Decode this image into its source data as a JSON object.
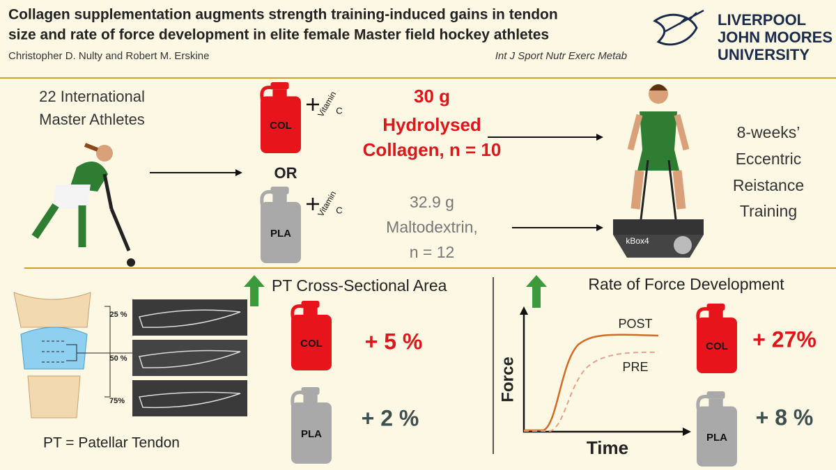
{
  "header": {
    "title_lines": [
      "Collagen supplementation augments strength training-induced gains in tendon",
      "size and rate of force development in elite female Master field hockey athletes"
    ],
    "authors": "Christopher D. Nulty and Robert M. Erskine",
    "journal": "Int J Sport Nutr Exerc Metab",
    "logo_lines": [
      "LIVERPOOL",
      "JOHN MOORES",
      "UNIVERSITY"
    ]
  },
  "design": {
    "participants": [
      "22 International",
      "Master Athletes"
    ],
    "col_label": "COL",
    "pla_label": "PLA",
    "vitamin": "Vitamin",
    "vitamin_letter": "C",
    "or": "OR",
    "col_group": [
      "30 g",
      "Hydrolysed",
      "Collagen, n = 10"
    ],
    "pla_group": [
      "32.9 g",
      "Maltodextrin,",
      "n = 12"
    ],
    "device": "kBox4",
    "training": [
      "8-weeks’",
      "Eccentric",
      "Reistance",
      "Training"
    ]
  },
  "results": {
    "csa": {
      "title": "PT Cross-Sectional Area",
      "col_change": "+ 5 %",
      "pla_change": "+ 2 %",
      "levels": [
        "25 %",
        "50 %",
        "75%"
      ],
      "footnote": "PT = Patellar Tendon"
    },
    "rfd": {
      "title": "Rate of Force Development",
      "y_axis": "Force",
      "x_axis": "Time",
      "post": "POST",
      "pre": "PRE",
      "col_change": "+ 27%",
      "pla_change": "+ 8 %"
    }
  }
}
